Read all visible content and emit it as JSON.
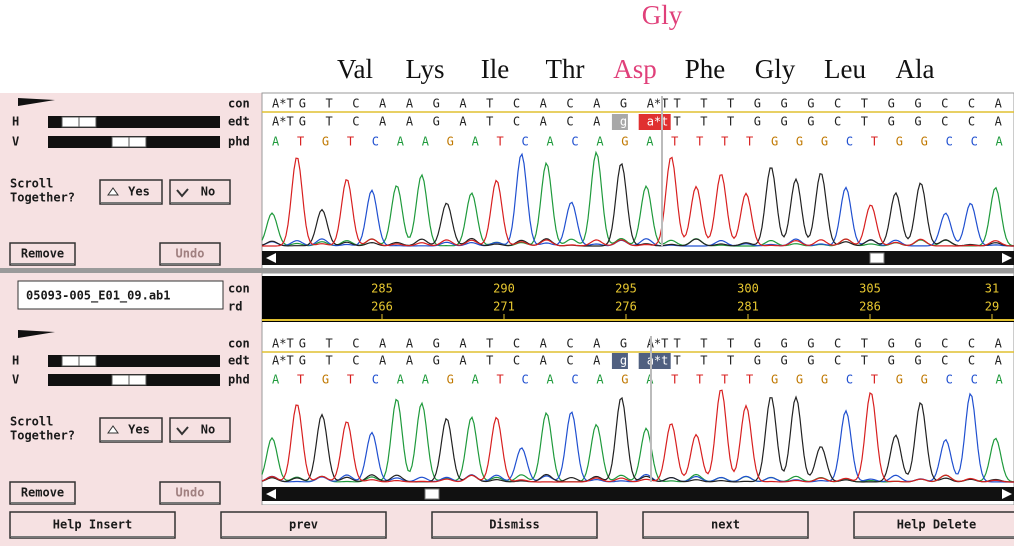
{
  "amino_acids": {
    "alternate": "Gly",
    "codons": [
      "Val",
      "Lys",
      "Ile",
      "Thr",
      "Asp",
      "Phe",
      "Gly",
      "Leu",
      "Ala"
    ]
  },
  "panels": [
    {
      "row_labels": [
        "con",
        "edt",
        "phd"
      ],
      "slider_labels": [
        "H",
        "V"
      ],
      "scroll_label": [
        "Scroll",
        "Together?"
      ],
      "buttons": {
        "yes": "Yes",
        "no": "No",
        "remove": "Remove",
        "undo": "Undo"
      },
      "con": [
        "A*T",
        "G",
        "T",
        "C",
        "A",
        "A",
        "G",
        "A",
        "T",
        "C",
        "A",
        "C",
        "A",
        "G",
        "A*T",
        "T",
        "T",
        "T",
        "G",
        "G",
        "G",
        "C",
        "T",
        "G",
        "G",
        "C",
        "C",
        "A"
      ],
      "edt": [
        "A*T",
        "G",
        "T",
        "C",
        "A",
        "A",
        "G",
        "A",
        "T",
        "C",
        "A",
        "C",
        "A",
        "g",
        "a*t",
        "T",
        "T",
        "T",
        "G",
        "G",
        "G",
        "C",
        "T",
        "G",
        "G",
        "C",
        "C",
        "A"
      ],
      "phd": [
        "A",
        "T",
        "G",
        "T",
        "C",
        "A",
        "A",
        "G",
        "A",
        "T",
        "C",
        "A",
        "C",
        "A",
        "G",
        "A",
        "T",
        "T",
        "T",
        "T",
        "G",
        "G",
        "G",
        "C",
        "T",
        "G",
        "G",
        "C",
        "C",
        "A"
      ]
    },
    {
      "filename": "05093-005_E01_09.ab1",
      "position_labels": [
        "con",
        "rd"
      ],
      "consensus_positions": [
        "285",
        "290",
        "295",
        "300",
        "305",
        "31"
      ],
      "read_positions": [
        "266",
        "271",
        "276",
        "281",
        "286",
        "29"
      ],
      "row_labels": [
        "con",
        "edt",
        "phd"
      ],
      "slider_labels": [
        "H",
        "V"
      ],
      "scroll_label": [
        "Scroll",
        "Together?"
      ],
      "buttons": {
        "yes": "Yes",
        "no": "No",
        "remove": "Remove",
        "undo": "Undo"
      },
      "con": [
        "A*T",
        "G",
        "T",
        "C",
        "A",
        "A",
        "G",
        "A",
        "T",
        "C",
        "A",
        "C",
        "A",
        "G",
        "A*T",
        "T",
        "T",
        "T",
        "G",
        "G",
        "G",
        "C",
        "T",
        "G",
        "G",
        "C",
        "C",
        "A"
      ],
      "edt": [
        "A*T",
        "G",
        "T",
        "C",
        "A",
        "A",
        "G",
        "A",
        "T",
        "C",
        "A",
        "C",
        "A",
        "g",
        "a*t",
        "T",
        "T",
        "T",
        "G",
        "G",
        "G",
        "C",
        "T",
        "G",
        "G",
        "C",
        "C",
        "A"
      ],
      "phd": [
        "A",
        "T",
        "G",
        "T",
        "C",
        "A",
        "A",
        "G",
        "A",
        "T",
        "C",
        "A",
        "C",
        "A",
        "G",
        "A",
        "T",
        "T",
        "T",
        "T",
        "G",
        "G",
        "G",
        "C",
        "T",
        "G",
        "G",
        "C",
        "C",
        "A"
      ]
    }
  ],
  "footer_buttons": [
    "Help Insert",
    "prev",
    "Dismiss",
    "next",
    "Help Delete"
  ]
}
